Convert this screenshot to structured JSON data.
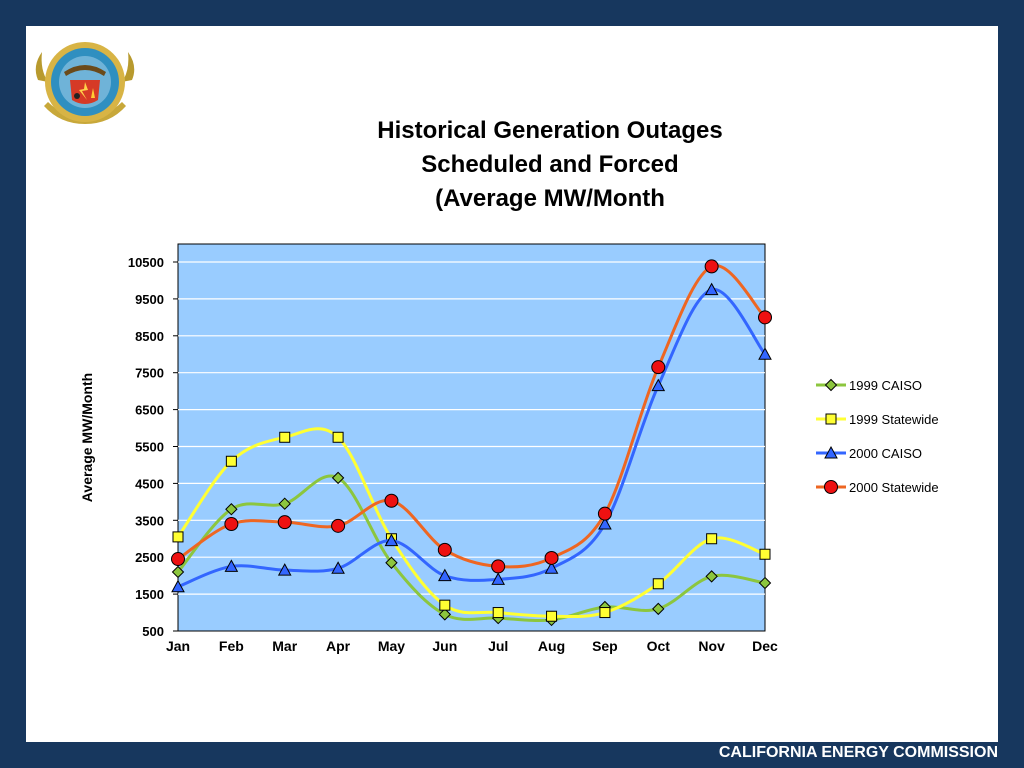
{
  "footer": {
    "organization": "CALIFORNIA ENERGY COMMISSION"
  },
  "seal": {
    "top_text": "STATE OF CALIFORNIA",
    "bottom_text": "ENERGY COMMISSION"
  },
  "colors": {
    "frame": "#17375e",
    "plot_background": "#99ccff",
    "gridline": "#ffffff"
  },
  "chart_data": {
    "type": "line",
    "title": [
      "Historical Generation Outages",
      "Scheduled and Forced",
      "(Average MW/Month"
    ],
    "ylabel": "Average MW/Month",
    "xlabel": "",
    "categories": [
      "Jan",
      "Feb",
      "Mar",
      "Apr",
      "May",
      "Jun",
      "Jul",
      "Aug",
      "Sep",
      "Oct",
      "Nov",
      "Dec"
    ],
    "ylim": [
      500,
      11000
    ],
    "yticks": [
      500,
      1500,
      2500,
      3500,
      4500,
      5500,
      6500,
      7500,
      8500,
      9500,
      10500
    ],
    "grid": true,
    "legend_position": "right",
    "series": [
      {
        "name": "1999 CAISO",
        "color": "#8cc63e",
        "marker": "diamond",
        "values": [
          2100,
          3800,
          3950,
          4650,
          2350,
          950,
          850,
          800,
          1150,
          1100,
          1980,
          1800
        ]
      },
      {
        "name": "1999 Statewide",
        "color": "#ffff33",
        "marker": "square",
        "values": [
          3050,
          5100,
          5750,
          5750,
          3000,
          1200,
          1000,
          900,
          1000,
          1780,
          3000,
          2580
        ]
      },
      {
        "name": "2000 CAISO",
        "color": "#3366ff",
        "marker": "triangle",
        "values": [
          1700,
          2250,
          2150,
          2200,
          2950,
          2000,
          1900,
          2200,
          3400,
          7150,
          9750,
          8000
        ]
      },
      {
        "name": "2000 Statewide",
        "color": "#ee6622",
        "marker": "circle",
        "values": [
          2450,
          3400,
          3450,
          3350,
          4030,
          2700,
          2250,
          2480,
          3680,
          7650,
          10380,
          9000
        ]
      }
    ]
  }
}
